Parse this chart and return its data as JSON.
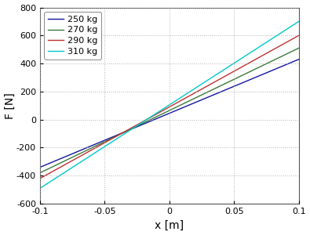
{
  "series": [
    {
      "label": "250 kg",
      "color": "#1414A0",
      "slope": 3850,
      "intercept": 45
    },
    {
      "label": "270 kg",
      "color": "#3A7A3A",
      "slope": 4450,
      "intercept": 65
    },
    {
      "label": "290 kg",
      "color": "#C03030",
      "slope": 5100,
      "intercept": 90
    },
    {
      "label": "310 kg",
      "color": "#00C8C8",
      "slope": 5950,
      "intercept": 105
    }
  ],
  "xlim": [
    -0.1,
    0.1
  ],
  "ylim": [
    -600,
    800
  ],
  "xticks": [
    -0.1,
    -0.05,
    0,
    0.05,
    0.1
  ],
  "yticks": [
    -600,
    -400,
    -200,
    0,
    200,
    400,
    600,
    800
  ],
  "xlabel": "x [m]",
  "ylabel": "F [N]",
  "bg_color": "#ffffff",
  "grid_color": "#aaaaaa",
  "linewidth": 1.0,
  "tick_fontsize": 8,
  "label_fontsize": 10,
  "legend_fontsize": 8
}
